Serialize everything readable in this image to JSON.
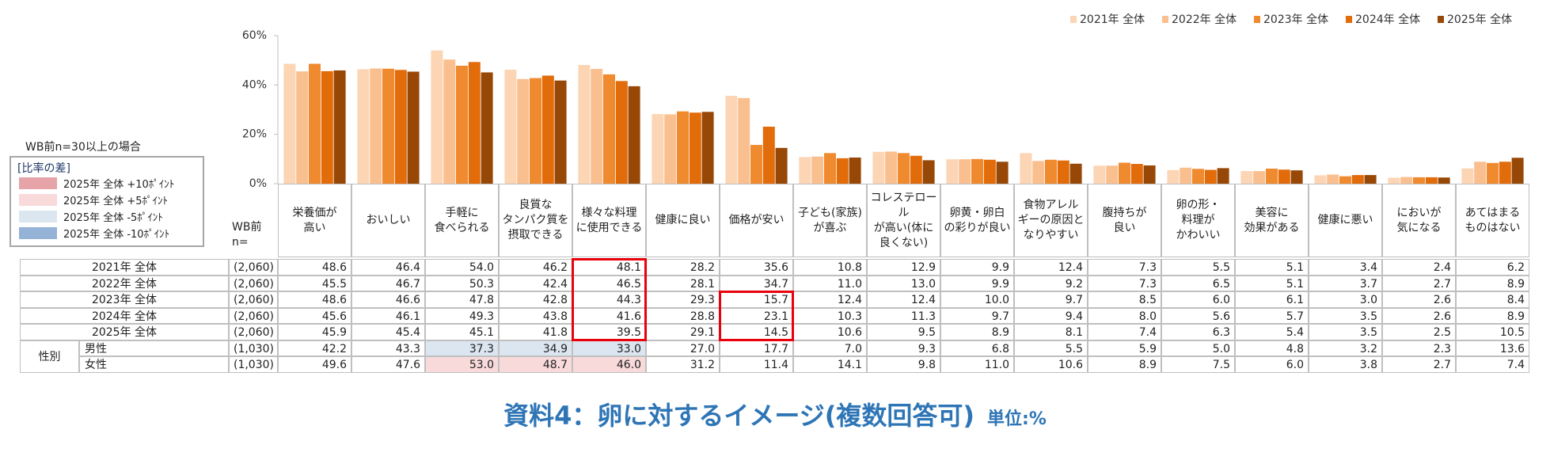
{
  "chart_data": {
    "type": "bar",
    "categories": [
      "栄養価が\n高い",
      "おいしい",
      "手軽に\n食べられる",
      "良質な\nタンパク質を\n摂取できる",
      "様々な料理\nに使用できる",
      "健康に良い",
      "価格が安い",
      "子ども(家族)\nが喜ぶ",
      "コレステロール\nが高い(体に\n良くない)",
      "卵黄・卵白\nの彩りが良い",
      "食物アレル\nギーの原因と\nなりやすい",
      "腹持ちが\n良い",
      "卵の形・\n料理が\nかわいい",
      "美容に\n効果がある",
      "健康に悪い",
      "においが\n気になる",
      "あてはまる\nものはない"
    ],
    "series": [
      {
        "name": "2021年 全体",
        "n": "(2,060)",
        "color": "#fcd5b4",
        "values": [
          48.6,
          46.4,
          54.0,
          46.2,
          48.1,
          28.2,
          35.6,
          10.8,
          12.9,
          9.9,
          12.4,
          7.3,
          5.5,
          5.1,
          3.4,
          2.4,
          6.2
        ],
        "value_labels": [
          "48.6",
          "46.4",
          "54.0",
          "46.2",
          "48.1",
          "28.2",
          "35.6",
          "10.8",
          "12.9",
          "9.9",
          "12.4",
          "7.3",
          "5.5",
          "5.1",
          "3.4",
          "2.4",
          "6.2"
        ]
      },
      {
        "name": "2022年 全体",
        "n": "(2,060)",
        "color": "#fabf8f",
        "values": [
          45.5,
          46.7,
          50.3,
          42.4,
          46.5,
          28.1,
          34.7,
          11.0,
          13.0,
          9.9,
          9.2,
          7.3,
          6.5,
          5.1,
          3.7,
          2.7,
          8.9
        ],
        "value_labels": [
          "45.5",
          "46.7",
          "50.3",
          "42.4",
          "46.5",
          "28.1",
          "34.7",
          "11.0",
          "13.0",
          "9.9",
          "9.2",
          "7.3",
          "6.5",
          "5.1",
          "3.7",
          "2.7",
          "8.9"
        ]
      },
      {
        "name": "2023年 全体",
        "n": "(2,060)",
        "color": "#f08a2e",
        "values": [
          48.6,
          46.6,
          47.8,
          42.8,
          44.3,
          29.3,
          15.7,
          12.4,
          12.4,
          10.0,
          9.7,
          8.5,
          6.0,
          6.1,
          3.0,
          2.6,
          8.4
        ],
        "value_labels": [
          "48.6",
          "46.6",
          "47.8",
          "42.8",
          "44.3",
          "29.3",
          "15.7",
          "12.4",
          "12.4",
          "10.0",
          "9.7",
          "8.5",
          "6.0",
          "6.1",
          "3.0",
          "2.6",
          "8.4"
        ]
      },
      {
        "name": "2024年 全体",
        "n": "(2,060)",
        "color": "#e26b0a",
        "values": [
          45.6,
          46.1,
          49.3,
          43.8,
          41.6,
          28.8,
          23.1,
          10.3,
          11.3,
          9.7,
          9.4,
          8.0,
          5.6,
          5.7,
          3.5,
          2.6,
          8.9
        ],
        "value_labels": [
          "45.6",
          "46.1",
          "49.3",
          "43.8",
          "41.6",
          "28.8",
          "23.1",
          "10.3",
          "11.3",
          "9.7",
          "9.4",
          "8.0",
          "5.6",
          "5.7",
          "3.5",
          "2.6",
          "8.9"
        ]
      },
      {
        "name": "2025年 全体",
        "n": "(2,060)",
        "color": "#974706",
        "values": [
          45.9,
          45.4,
          45.1,
          41.8,
          39.5,
          29.1,
          14.5,
          10.6,
          9.5,
          8.9,
          8.1,
          7.4,
          6.3,
          5.4,
          3.5,
          2.5,
          10.5
        ],
        "value_labels": [
          "45.9",
          "45.4",
          "45.1",
          "41.8",
          "39.5",
          "29.1",
          "14.5",
          "10.6",
          "9.5",
          "8.9",
          "8.1",
          "7.4",
          "6.3",
          "5.4",
          "3.5",
          "2.5",
          "10.5"
        ]
      }
    ],
    "ylim": [
      0,
      60
    ],
    "yticks": [
      {
        "value": 0,
        "label": "0%"
      },
      {
        "value": 20,
        "label": "20%"
      },
      {
        "value": 40,
        "label": "40%"
      },
      {
        "value": 60,
        "label": "60%"
      }
    ],
    "grid": false,
    "legend": "top-right"
  },
  "note": "WB前n=30以上の場合",
  "diff_legend": {
    "title": "[比率の差]",
    "items": [
      {
        "label": "2025年 全体 +10ﾎﾟｲﾝﾄ",
        "color": "#e6a3a8"
      },
      {
        "label": "2025年 全体 +5ﾎﾟｲﾝﾄ",
        "color": "#f8dadb"
      },
      {
        "label": "2025年 全体 -5ﾎﾟｲﾝﾄ",
        "color": "#dce6f1"
      },
      {
        "label": "2025年 全体 -10ﾎﾟｲﾝﾄ",
        "color": "#95b3d7"
      }
    ]
  },
  "table": {
    "n_header": "WB前\nn=",
    "group_label": "性別",
    "rows": [
      {
        "name": "男性",
        "n": "(1,030)",
        "values": [
          "42.2",
          "43.3",
          "37.3",
          "34.9",
          "33.0",
          "27.0",
          "17.7",
          "7.0",
          "9.3",
          "6.8",
          "5.5",
          "5.9",
          "5.0",
          "4.8",
          "3.2",
          "2.3",
          "13.6"
        ],
        "shade": [
          null,
          null,
          2,
          2,
          2,
          null,
          null,
          null,
          null,
          null,
          null,
          null,
          null,
          null,
          null,
          null,
          null
        ]
      },
      {
        "name": "女性",
        "n": "(1,030)",
        "values": [
          "49.6",
          "47.6",
          "53.0",
          "48.7",
          "46.0",
          "31.2",
          "11.4",
          "14.1",
          "9.8",
          "11.0",
          "10.6",
          "8.9",
          "7.5",
          "6.0",
          "3.8",
          "2.7",
          "7.4"
        ],
        "shade": [
          null,
          null,
          1,
          1,
          1,
          null,
          null,
          null,
          null,
          null,
          null,
          null,
          null,
          null,
          null,
          null,
          null
        ]
      }
    ]
  },
  "footer": {
    "title": "資料4：卵に対するイメージ(複数回答可)",
    "unit": "単位:%"
  }
}
